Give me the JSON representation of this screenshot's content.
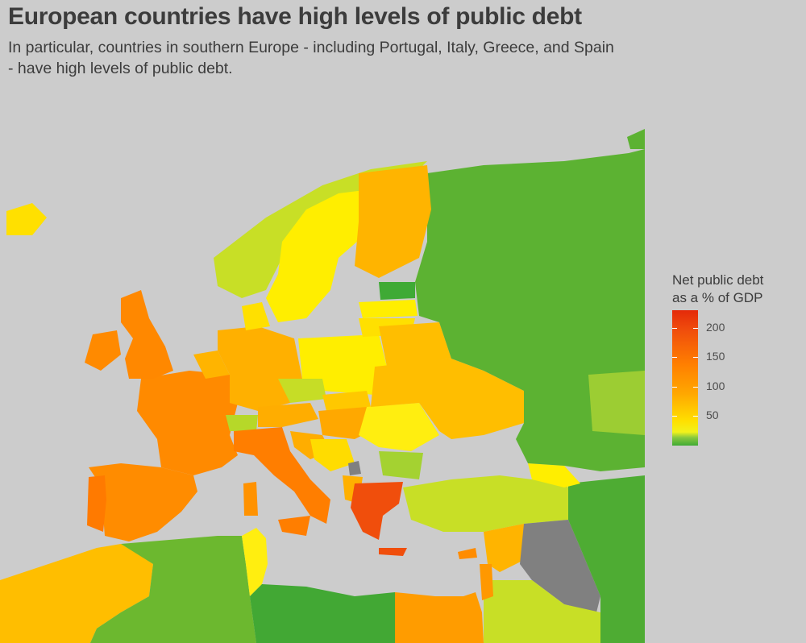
{
  "title": "European countries have high levels of public debt",
  "subtitle": "In particular, countries in southern Europe - including Portugal, Italy, Greece, and Spain - have high levels of public debt.",
  "legend": {
    "title": "Net public debt\nas a % of GDP",
    "min": 0,
    "max": 230,
    "ticks": [
      "200",
      "150",
      "100",
      "50"
    ],
    "tick_values": [
      200,
      150,
      100,
      50
    ],
    "colors": {
      "low": "#3faa35",
      "lowmid": "#8ac93e",
      "mid": "#ffe000",
      "midhigh": "#ffa800",
      "high": "#ff7f00",
      "top": "#e42a0a"
    }
  },
  "map": {
    "background": "#cccccc",
    "no_data_color": "#808080"
  }
}
